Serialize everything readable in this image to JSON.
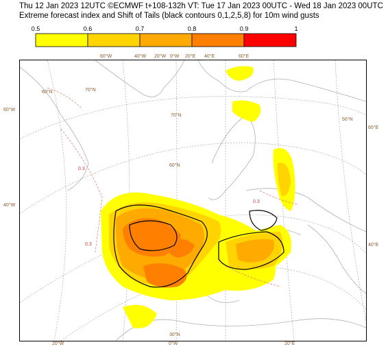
{
  "header": {
    "line1": "Thu 12 Jan 2023 12UTC ©ECMWF t+108-132h  VT: Tue 17 Jan 2023 00UTC - Wed 18 Jan 2023 00UTC",
    "line2": "Extreme forecast index and Shift of Tails (black contours 0,1,2,5,8) for 10m wind gusts"
  },
  "legend": {
    "ticks": [
      "0.5",
      "0.6",
      "0.7",
      "0.8",
      "0.9",
      "1"
    ],
    "colors": [
      "#ffff00",
      "#ffd400",
      "#ffaa00",
      "#ff7f00",
      "#ff0000"
    ]
  },
  "colors": {
    "efi_05": "#ffff00",
    "efi_06": "#ffd400",
    "efi_07": "#ffaa00",
    "efi_08": "#ff7f00",
    "coast": "#b0b0b0",
    "graticule": "#9a9a9a",
    "contour_dashed": "#e07070"
  },
  "top_labels": [
    "60°W",
    "40°W",
    "20°W",
    "0°W",
    "20°E",
    "40°E",
    "60°E"
  ],
  "left_labels": [
    "60°W",
    "40°W"
  ],
  "right_labels": [
    "60°E",
    "40°E"
  ],
  "bottom_labels": [
    "20°W",
    "0°W",
    "20°E"
  ],
  "inner_labels": [
    "70°N",
    "60°N",
    "70°N",
    "60°N",
    "30°N",
    "50°N"
  ],
  "contour_labels": [
    "0.3",
    "0.3",
    "0.3"
  ]
}
